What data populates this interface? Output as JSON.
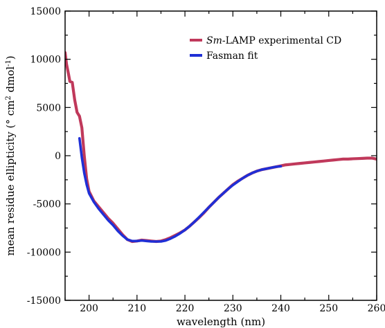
{
  "chart_data": {
    "type": "line",
    "xlabel": "wavelength (nm)",
    "ylabel_parts": {
      "base": "mean residue ellipticity (",
      "deg": "°",
      "cm": " cm",
      "exp2": "2",
      "dmol": " dmol",
      "expm1": "-1",
      "close": ")"
    },
    "xlim": [
      195,
      260
    ],
    "ylim": [
      -15000,
      15000
    ],
    "x_ticks": [
      200,
      210,
      220,
      230,
      240,
      250,
      260
    ],
    "y_ticks": [
      -15000,
      -10000,
      -5000,
      0,
      5000,
      10000,
      15000
    ],
    "x_tick_labels": [
      "200",
      "210",
      "220",
      "230",
      "240",
      "250",
      "260"
    ],
    "y_tick_labels": [
      "-15000",
      "-10000",
      "-5000",
      "0",
      "5000",
      "10000",
      "15000"
    ],
    "grid": false,
    "legend_position": "top-right",
    "legend_title_italic": "Sm",
    "legend_title_rest": "-LAMP experimental CD",
    "series": [
      {
        "name": "Sm-LAMP experimental CD",
        "color": "#c0395b",
        "x": [
          195,
          195.3,
          195.7,
          196,
          196.5,
          197,
          197.5,
          198,
          198.5,
          199,
          199.5,
          200,
          201,
          202,
          203,
          204,
          205,
          206,
          207,
          208,
          209,
          210,
          211,
          212,
          213,
          214,
          215,
          216,
          217,
          218,
          219,
          220,
          221,
          222,
          223,
          224,
          225,
          226,
          227,
          228,
          229,
          230,
          231,
          232,
          233,
          234,
          235,
          236,
          237,
          238,
          239,
          240,
          241,
          242,
          243,
          244,
          245,
          246,
          247,
          248,
          249,
          250,
          251,
          252,
          253,
          254,
          255,
          256,
          257,
          258,
          259,
          260
        ],
        "y": [
          10700,
          9500,
          8500,
          7700,
          7600,
          5800,
          4500,
          4100,
          2900,
          0,
          -2400,
          -3700,
          -4700,
          -5300,
          -5900,
          -6500,
          -7000,
          -7600,
          -8200,
          -8700,
          -8900,
          -8850,
          -8750,
          -8800,
          -8850,
          -8900,
          -8850,
          -8700,
          -8500,
          -8250,
          -8000,
          -7700,
          -7300,
          -6850,
          -6400,
          -5900,
          -5350,
          -4850,
          -4350,
          -3900,
          -3450,
          -3000,
          -2650,
          -2350,
          -2050,
          -1800,
          -1600,
          -1450,
          -1350,
          -1250,
          -1150,
          -1050,
          -950,
          -900,
          -850,
          -800,
          -750,
          -700,
          -650,
          -600,
          -550,
          -500,
          -450,
          -400,
          -350,
          -350,
          -320,
          -300,
          -280,
          -250,
          -250,
          -350
        ]
      },
      {
        "name": "Fasman fit",
        "color": "#1f2fd6",
        "x": [
          198,
          198.5,
          199,
          199.5,
          200,
          201,
          202,
          203,
          204,
          205,
          206,
          207,
          208,
          209,
          210,
          211,
          212,
          213,
          214,
          215,
          216,
          217,
          218,
          219,
          220,
          221,
          222,
          223,
          224,
          225,
          226,
          227,
          228,
          229,
          230,
          231,
          232,
          233,
          234,
          235,
          236,
          237,
          238,
          239,
          240
        ],
        "y": [
          1800,
          -200,
          -1800,
          -3000,
          -3900,
          -4800,
          -5500,
          -6100,
          -6700,
          -7200,
          -7800,
          -8300,
          -8700,
          -8850,
          -8850,
          -8800,
          -8850,
          -8900,
          -8900,
          -8900,
          -8800,
          -8600,
          -8350,
          -8050,
          -7700,
          -7300,
          -6850,
          -6350,
          -5850,
          -5350,
          -4850,
          -4350,
          -3900,
          -3450,
          -3050,
          -2700,
          -2350,
          -2050,
          -1800,
          -1600,
          -1450,
          -1350,
          -1250,
          -1150,
          -1100
        ]
      }
    ]
  }
}
